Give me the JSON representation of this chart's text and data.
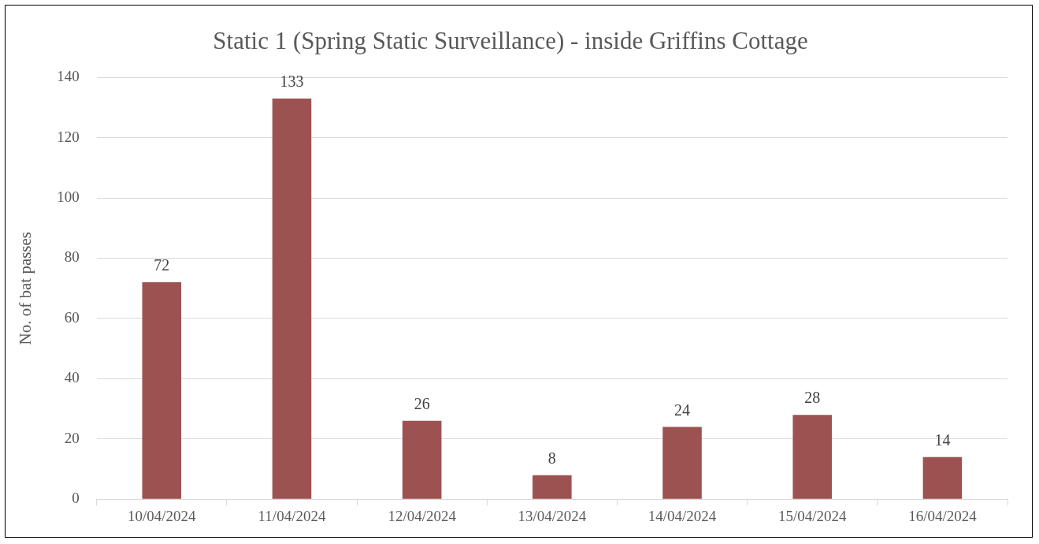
{
  "chart_data": {
    "type": "bar",
    "title": "Static 1 (Spring Static Surveillance) - inside Griffins Cottage",
    "ylabel": "No. of bat passes",
    "categories": [
      "10/04/2024",
      "11/04/2024",
      "12/04/2024",
      "13/04/2024",
      "14/04/2024",
      "15/04/2024",
      "16/04/2024"
    ],
    "values": [
      72,
      133,
      26,
      8,
      24,
      28,
      14
    ],
    "color": "#9c5251",
    "ylim": [
      0,
      140
    ],
    "yticks": [
      0,
      20,
      40,
      60,
      80,
      100,
      120,
      140
    ],
    "grid": "y",
    "data_labels": true,
    "legend": false
  }
}
